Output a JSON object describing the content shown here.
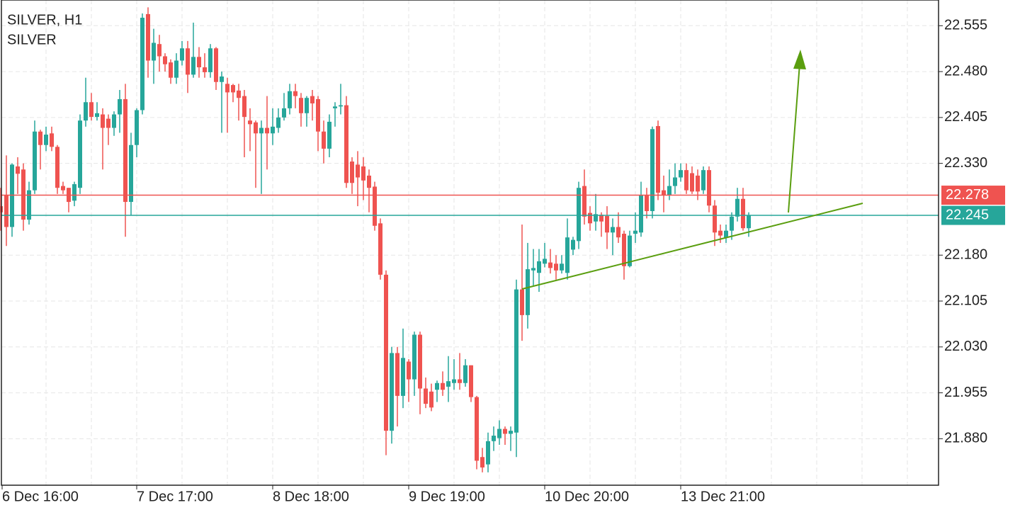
{
  "chart_data": {
    "type": "candlestick",
    "title": "SILVER, H1",
    "subtitle": "SILVER",
    "categories": [
      "6 Dec 16:00",
      null,
      null,
      null,
      null,
      null,
      null,
      null,
      null,
      null,
      null,
      null,
      null,
      null,
      null,
      null,
      null,
      null,
      null,
      null,
      null,
      null,
      null,
      null,
      "7 Dec 17:00",
      null,
      null,
      null,
      null,
      null,
      null,
      null,
      null,
      null,
      null,
      null,
      null,
      null,
      null,
      null,
      null,
      null,
      null,
      null,
      null,
      null,
      null,
      null,
      "8 Dec 18:00",
      null,
      null,
      null,
      null,
      null,
      null,
      null,
      null,
      null,
      null,
      null,
      null,
      null,
      null,
      null,
      null,
      null,
      null,
      null,
      null,
      null,
      null,
      null,
      "9 Dec 19:00",
      null,
      null,
      null,
      null,
      null,
      null,
      null,
      null,
      null,
      null,
      null,
      null,
      null,
      null,
      null,
      null,
      null,
      null,
      null,
      null,
      null,
      null,
      null,
      "10 Dec 20:00",
      null,
      null,
      null,
      null,
      null,
      null,
      null,
      null,
      null,
      null,
      null,
      null,
      null,
      null,
      null,
      null,
      null,
      null,
      null,
      null,
      null,
      null,
      null,
      "13 Dec 21:00",
      null,
      null,
      null,
      null,
      null,
      null,
      null,
      null,
      null,
      null,
      null,
      null
    ],
    "open": [
      22.26,
      22.278,
      22.226,
      22.325,
      22.32,
      22.238,
      22.286,
      22.382,
      22.36,
      22.379,
      22.357,
      22.293,
      22.29,
      22.269,
      22.29,
      22.4,
      22.43,
      22.406,
      22.41,
      22.403,
      22.388,
      22.41,
      22.435,
      22.267,
      22.36,
      22.417,
      22.574,
      22.498,
      22.525,
      22.505,
      22.495,
      22.47,
      22.498,
      22.518,
      22.475,
      22.504,
      22.487,
      22.479,
      22.518,
      22.463,
      22.46,
      22.458,
      22.449,
      22.44,
      22.4,
      22.397,
      22.379,
      22.388,
      22.379,
      22.388,
      22.405,
      22.42,
      22.448,
      22.437,
      22.412,
      22.44,
      22.435,
      22.382,
      22.354,
      22.42,
      22.423,
      22.425,
      22.333,
      22.328,
      22.325,
      22.31,
      22.292,
      22.232,
      22.148,
      21.893,
      22.02,
      21.95,
      22.006,
      21.977,
      22.05,
      21.962,
      21.957,
      21.96,
      21.971,
      21.965,
      21.971,
      21.977,
      21.971,
      22.0,
      21.948,
      21.85,
      21.838,
      21.876,
      21.881,
      21.896,
      21.888,
      21.89,
      22.124,
      22.082,
      22.155,
      22.151,
      22.166,
      22.168,
      22.166,
      22.155,
      22.151,
      22.189,
      22.203,
      22.293,
      22.249,
      22.235,
      22.246,
      22.244,
      22.217,
      22.226,
      22.215,
      22.162,
      22.215,
      22.217,
      22.278,
      22.252,
      22.391,
      22.286,
      22.278,
      22.293,
      22.307,
      22.319,
      22.314,
      22.31,
      22.286,
      22.319,
      22.261,
      22.22,
      22.209,
      22.22,
      22.243,
      22.272,
      22.224
    ],
    "high": [
      22.29,
      22.343,
      22.33,
      22.34,
      22.33,
      22.3,
      22.4,
      22.385,
      22.39,
      22.39,
      22.36,
      22.3,
      22.29,
      22.3,
      22.41,
      22.47,
      22.445,
      22.43,
      22.42,
      22.41,
      22.415,
      22.45,
      22.46,
      22.38,
      22.42,
      22.575,
      22.585,
      22.55,
      22.54,
      22.51,
      22.5,
      22.51,
      22.53,
      22.53,
      22.56,
      22.52,
      22.51,
      22.525,
      22.52,
      22.48,
      22.47,
      22.46,
      22.46,
      22.45,
      22.42,
      22.4,
      22.4,
      22.44,
      22.42,
      22.42,
      22.445,
      22.46,
      22.46,
      22.445,
      22.44,
      22.45,
      22.44,
      22.4,
      22.41,
      22.43,
      22.46,
      22.44,
      22.34,
      22.35,
      22.34,
      22.32,
      22.3,
      22.24,
      22.155,
      22.03,
      22.03,
      22.06,
      22.01,
      22.055,
      22.055,
      21.98,
      21.97,
      21.975,
      21.99,
      22.015,
      22.01,
      22.02,
      22.01,
      22.0,
      21.95,
      21.865,
      21.89,
      21.9,
      21.91,
      21.9,
      21.9,
      22.14,
      22.23,
      22.2,
      22.19,
      22.19,
      22.2,
      22.19,
      22.18,
      22.18,
      22.24,
      22.21,
      22.3,
      22.32,
      22.26,
      22.28,
      22.25,
      22.26,
      22.24,
      22.25,
      22.22,
      22.22,
      22.25,
      22.3,
      22.29,
      22.39,
      22.4,
      22.31,
      22.32,
      22.33,
      22.33,
      22.33,
      22.325,
      22.32,
      22.325,
      22.325,
      22.27,
      22.23,
      22.23,
      22.25,
      22.29,
      22.29,
      22.25
    ],
    "low": [
      22.22,
      22.195,
      22.21,
      22.28,
      22.22,
      22.23,
      22.28,
      22.32,
      22.35,
      22.35,
      22.28,
      22.28,
      22.25,
      22.26,
      22.28,
      22.39,
      22.4,
      22.4,
      22.32,
      22.36,
      22.375,
      22.38,
      22.21,
      22.245,
      22.34,
      22.41,
      22.47,
      22.46,
      22.48,
      22.48,
      22.46,
      22.46,
      22.49,
      22.445,
      22.47,
      22.47,
      22.47,
      22.47,
      22.45,
      22.38,
      22.38,
      22.43,
      22.4,
      22.34,
      22.35,
      22.29,
      22.28,
      22.32,
      22.36,
      22.38,
      22.4,
      22.41,
      22.42,
      22.39,
      22.39,
      22.4,
      22.35,
      22.33,
      22.34,
      22.39,
      22.41,
      22.29,
      22.28,
      22.26,
      22.27,
      22.25,
      22.22,
      22.14,
      21.853,
      21.872,
      21.9,
      21.93,
      21.94,
      21.95,
      21.92,
      21.93,
      21.925,
      21.94,
      21.95,
      21.94,
      21.96,
      21.96,
      21.965,
      21.94,
      21.83,
      21.825,
      21.825,
      21.86,
      21.87,
      21.87,
      21.86,
      21.85,
      22.04,
      22.06,
      22.13,
      22.12,
      22.16,
      22.15,
      22.14,
      22.15,
      22.14,
      22.18,
      22.19,
      22.23,
      22.22,
      22.22,
      22.21,
      22.19,
      22.18,
      22.2,
      22.14,
      22.16,
      22.2,
      22.21,
      22.24,
      22.24,
      22.27,
      22.25,
      22.27,
      22.28,
      22.3,
      22.28,
      22.28,
      22.27,
      22.28,
      22.25,
      22.195,
      22.2,
      22.2,
      22.205,
      22.235,
      22.22,
      22.21
    ],
    "close": [
      22.25,
      22.226,
      22.328,
      22.313,
      22.238,
      22.286,
      22.382,
      22.36,
      22.377,
      22.357,
      22.29,
      22.286,
      22.267,
      22.296,
      22.4,
      22.43,
      22.406,
      22.412,
      22.388,
      22.388,
      22.41,
      22.435,
      22.267,
      22.36,
      22.417,
      22.568,
      22.498,
      22.527,
      22.505,
      22.492,
      22.47,
      22.498,
      22.518,
      22.475,
      22.504,
      22.487,
      22.479,
      22.518,
      22.463,
      22.472,
      22.446,
      22.446,
      22.437,
      22.406,
      22.394,
      22.379,
      22.388,
      22.379,
      22.39,
      22.405,
      22.42,
      22.448,
      22.44,
      22.412,
      22.437,
      22.428,
      22.382,
      22.354,
      22.398,
      22.423,
      22.425,
      22.298,
      22.298,
      22.307,
      22.302,
      22.29,
      22.228,
      22.148,
      21.893,
      22.02,
      21.95,
      22.012,
      21.977,
      22.05,
      21.962,
      21.937,
      21.931,
      21.971,
      21.96,
      21.974,
      21.977,
      21.971,
      22.0,
      21.948,
      21.844,
      21.833,
      21.876,
      21.885,
      21.896,
      21.888,
      21.893,
      22.124,
      22.082,
      22.157,
      22.159,
      22.17,
      22.174,
      22.159,
      22.155,
      22.166,
      22.209,
      22.205,
      22.29,
      22.243,
      22.232,
      22.247,
      22.235,
      22.217,
      22.226,
      22.209,
      22.162,
      22.212,
      22.22,
      22.278,
      22.252,
      22.386,
      22.282,
      22.278,
      22.293,
      22.307,
      22.319,
      22.286,
      22.284,
      22.284,
      22.319,
      22.261,
      22.217,
      22.212,
      22.22,
      22.243,
      22.272,
      22.224,
      22.245
    ],
    "up_color": "#26a69a",
    "down_color": "#ef5350",
    "ylim": [
      21.804,
      22.597
    ],
    "yticks": [
      {
        "value": 22.555,
        "label": "22.555"
      },
      {
        "value": 22.48,
        "label": "22.480"
      },
      {
        "value": 22.405,
        "label": "22.405"
      },
      {
        "value": 22.33,
        "label": "22.330"
      },
      {
        "value": 22.18,
        "label": "22.180"
      },
      {
        "value": 22.105,
        "label": "22.105"
      },
      {
        "value": 22.03,
        "label": "22.030"
      },
      {
        "value": 21.955,
        "label": "21.955"
      },
      {
        "value": 21.88,
        "label": "21.880"
      }
    ],
    "price_lines": [
      {
        "value": 22.278,
        "color": "#ef5350"
      },
      {
        "value": 22.245,
        "color": "#26a69a"
      }
    ],
    "grid": true
  }
}
